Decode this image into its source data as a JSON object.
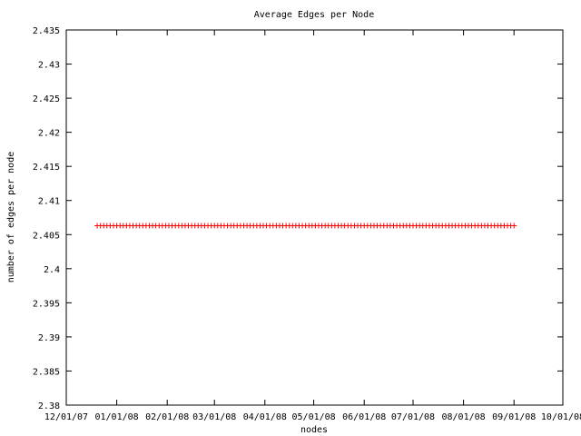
{
  "chart_data": {
    "type": "scatter",
    "title": "Average Edges per Node",
    "xlabel": "nodes",
    "ylabel": "number of edges per node",
    "x_tick_labels": [
      "12/01/07",
      "01/01/08",
      "02/01/08",
      "03/01/08",
      "04/01/08",
      "05/01/08",
      "06/01/08",
      "07/01/08",
      "08/01/08",
      "09/01/08",
      "10/01/08"
    ],
    "y_tick_labels": [
      "2.435",
      "2.43",
      "2.425",
      "2.42",
      "2.415",
      "2.41",
      "2.405",
      "2.4",
      "2.395",
      "2.39",
      "2.385",
      "2.38"
    ],
    "ylim": [
      2.38,
      2.435
    ],
    "xlim": [
      "2007-12-01",
      "2008-10-01"
    ],
    "marker": "+",
    "grid": false,
    "series": [
      {
        "color": "#ff0000",
        "x_range": [
          "2007-12-20",
          "2008-09-01"
        ],
        "x_step_days": 2,
        "y": 2.4063
      }
    ]
  }
}
